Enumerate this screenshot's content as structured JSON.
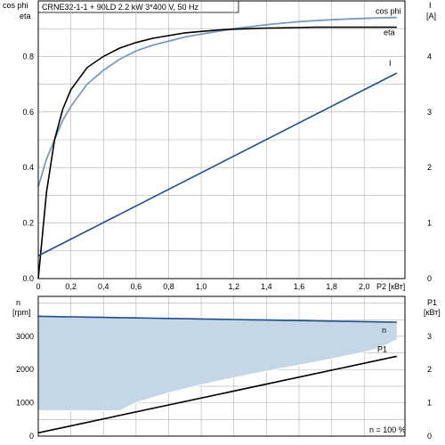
{
  "title": "CRNE32-1-1 + 90LD   2.2 kW   3*400 V, 50 Hz",
  "colors": {
    "eta": "#000000",
    "cosphi": "#7a9bbf",
    "current": "#1f4e8c",
    "speed": "#1f4e8c",
    "speed_band": "#c5d6e6",
    "p1": "#000000",
    "grid": "#b0b0b0"
  },
  "chart_data": [
    {
      "type": "line",
      "x": [
        0,
        0.05,
        0.1,
        0.15,
        0.2,
        0.3,
        0.4,
        0.5,
        0.6,
        0.7,
        0.8,
        0.9,
        1.0,
        1.1,
        1.2,
        1.3,
        1.4,
        1.5,
        1.6,
        1.7,
        1.8,
        1.9,
        2.0,
        2.1,
        2.2
      ],
      "series": [
        {
          "name": "eta",
          "values": [
            0.0,
            0.31,
            0.5,
            0.61,
            0.68,
            0.76,
            0.8,
            0.83,
            0.85,
            0.865,
            0.875,
            0.885,
            0.89,
            0.895,
            0.898,
            0.9,
            0.902,
            0.903,
            0.904,
            0.905,
            0.905,
            0.905,
            0.905,
            0.905,
            0.905
          ]
        },
        {
          "name": "cos phi",
          "values": [
            0.33,
            0.43,
            0.5,
            0.57,
            0.62,
            0.7,
            0.75,
            0.79,
            0.82,
            0.84,
            0.855,
            0.87,
            0.88,
            0.89,
            0.9,
            0.907,
            0.914,
            0.92,
            0.925,
            0.929,
            0.932,
            0.935,
            0.937,
            0.939,
            0.94
          ]
        },
        {
          "name": "I",
          "axis": "right",
          "x": [
            0,
            2.2
          ],
          "values": [
            0.082,
            0.74
          ]
        }
      ],
      "xlim": [
        0,
        2.25
      ],
      "ylim": [
        0,
        1.0
      ],
      "y_right_lim": [
        0,
        5.0
      ],
      "x_ticks": [
        "0",
        "0,2",
        "0,4",
        "0,6",
        "0,8",
        "1,0",
        "1,2",
        "1,4",
        "1,6",
        "1,8",
        "2,0"
      ],
      "y_ticks": [
        "0.0",
        "0.2",
        "0.4",
        "0.6",
        "0.8"
      ],
      "y_right_ticks": [
        "0",
        "1",
        "2",
        "3",
        "4"
      ],
      "xlabel": "P2 [кВт]",
      "ylabel": [
        "cos phi",
        "eta"
      ],
      "ylabel_right": [
        "I",
        "[A]"
      ],
      "grid": true
    },
    {
      "type": "area",
      "x": [
        0,
        0.05,
        0.1,
        0.15,
        0.2,
        0.3,
        0.4,
        0.5,
        0.6,
        0.7,
        0.8,
        0.9,
        1.0,
        1.1,
        1.2,
        1.3,
        1.4,
        1.5,
        1.6,
        1.7,
        1.8,
        1.9,
        2.0,
        2.1,
        2.2
      ],
      "series": [
        {
          "name": "n",
          "values": [
            3600,
            3596,
            3592,
            3588,
            3584,
            3576,
            3568,
            3560,
            3552,
            3544,
            3536,
            3528,
            3520,
            3512,
            3504,
            3496,
            3488,
            3480,
            3472,
            3464,
            3456,
            3448,
            3440,
            3432,
            3425
          ]
        },
        {
          "name": "",
          "values": [
            760,
            760,
            760,
            760,
            760,
            760,
            760,
            760,
            1000,
            1150,
            1300,
            1420,
            1540,
            1650,
            1750,
            1850,
            1950,
            2040,
            2130,
            2220,
            2320,
            2420,
            2520,
            2650,
            2900
          ]
        },
        {
          "name": "P1",
          "axis": "right",
          "x": [
            0,
            2.2
          ],
          "values": [
            0.1,
            2.4
          ]
        }
      ],
      "xlim": [
        0,
        2.25
      ],
      "ylim": [
        0,
        4200
      ],
      "y_right_lim": [
        0,
        4.2
      ],
      "y_ticks": [
        "0",
        "1000",
        "2000",
        "3000"
      ],
      "y_right_ticks": [
        "0",
        "1",
        "2",
        "3"
      ],
      "ylabel": [
        "n",
        "[rpm]"
      ],
      "ylabel_right": [
        "P1",
        "[кВт]"
      ],
      "annotation": "n = 100 %",
      "grid": true
    }
  ]
}
